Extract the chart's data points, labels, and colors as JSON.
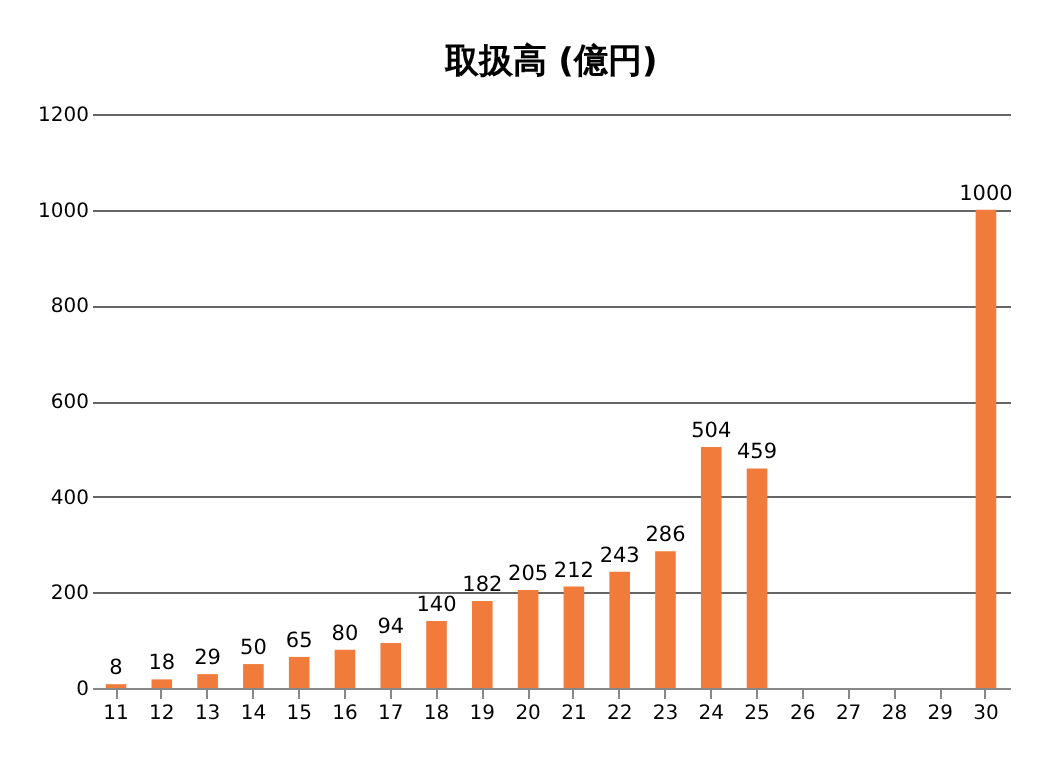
{
  "chart_data": {
    "type": "bar",
    "title": "取扱高 (億円)",
    "categories": [
      "11",
      "12",
      "13",
      "14",
      "15",
      "16",
      "17",
      "18",
      "19",
      "20",
      "21",
      "22",
      "23",
      "24",
      "25",
      "26",
      "27",
      "28",
      "29",
      "30"
    ],
    "values": [
      8,
      18,
      29,
      50,
      65,
      80,
      94,
      140,
      182,
      205,
      212,
      243,
      286,
      504,
      459,
      null,
      null,
      null,
      null,
      1000
    ],
    "color": "#f07b3a",
    "ylim": [
      0,
      1200
    ],
    "yticks": [
      0,
      200,
      400,
      600,
      800,
      1000,
      1200
    ],
    "grid": "y",
    "data_labels": true
  }
}
